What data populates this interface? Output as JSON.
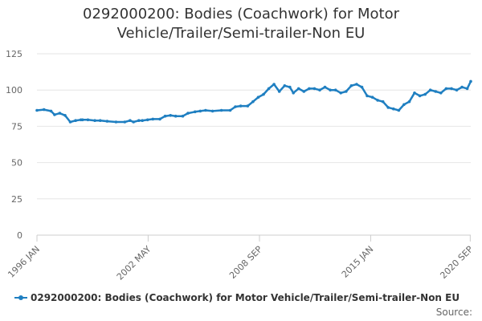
{
  "title_lines": [
    "0292000200: Bodies (Coachwork) for Motor",
    "Vehicle/Trailer/Semi-trailer-Non EU"
  ],
  "source_label": "Source:",
  "colors": {
    "series": "#1f7fc1",
    "grid": "#e6e6e6",
    "axis_text": "#666666"
  },
  "chart_data": {
    "type": "line",
    "title": "0292000200: Bodies (Coachwork) for Motor Vehicle/Trailer/Semi-trailer-Non EU",
    "xlabel": "",
    "ylabel": "",
    "ylim": [
      0,
      125
    ],
    "yticks": [
      0,
      25,
      50,
      75,
      100,
      125
    ],
    "xlim": [
      1996.0,
      2020.7
    ],
    "xticks": [
      {
        "x": 1996.0,
        "label": "1996 JAN"
      },
      {
        "x": 2002.33,
        "label": "2002 MAY"
      },
      {
        "x": 2008.67,
        "label": "2008 SEP"
      },
      {
        "x": 2015.0,
        "label": "2015 JAN"
      },
      {
        "x": 2020.67,
        "label": "2020 SEP"
      }
    ],
    "legend_position": "bottom-left",
    "series": [
      {
        "name": "0292000200: Bodies (Coachwork) for Motor Vehicle/Trailer/Semi-trailer-Non EU",
        "x": [
          1996.0,
          1996.4,
          1996.8,
          1997.0,
          1997.3,
          1997.6,
          1997.9,
          1998.2,
          1998.5,
          1998.6,
          1998.9,
          1999.3,
          1999.6,
          2000.0,
          2000.5,
          2001.0,
          2001.3,
          2001.5,
          2001.8,
          2002.0,
          2002.3,
          2002.6,
          2003.0,
          2003.3,
          2003.6,
          2003.9,
          2004.3,
          2004.6,
          2005.0,
          2005.3,
          2005.6,
          2006.0,
          2006.5,
          2007.0,
          2007.3,
          2007.6,
          2008.0,
          2008.3,
          2008.6,
          2008.9,
          2009.2,
          2009.5,
          2009.8,
          2010.1,
          2010.4,
          2010.6,
          2010.9,
          2011.2,
          2011.5,
          2011.8,
          2012.1,
          2012.4,
          2012.7,
          2013.0,
          2013.3,
          2013.6,
          2013.9,
          2014.2,
          2014.5,
          2014.8,
          2015.1,
          2015.4,
          2015.7,
          2016.0,
          2016.3,
          2016.6,
          2016.9,
          2017.2,
          2017.5,
          2017.8,
          2018.1,
          2018.4,
          2018.7,
          2019.0,
          2019.3,
          2019.6,
          2019.9,
          2020.2,
          2020.5,
          2020.7
        ],
        "values": [
          86,
          86.5,
          85.5,
          83,
          84,
          82.5,
          78,
          79,
          79.5,
          79.5,
          79.5,
          79,
          79,
          78.5,
          78,
          78,
          79,
          78,
          79,
          79,
          79.5,
          80,
          80,
          82,
          82.5,
          82,
          82,
          84,
          85,
          85.5,
          86,
          85.5,
          86,
          86,
          88.5,
          89,
          89,
          92,
          95,
          97,
          101,
          104,
          99,
          103,
          102,
          98,
          101,
          99,
          101,
          101,
          100,
          102,
          100,
          100,
          98,
          99,
          103,
          104,
          102,
          96,
          95,
          93,
          92,
          88,
          87,
          86,
          90,
          92,
          98,
          96,
          97,
          100,
          99,
          98,
          101,
          101,
          100,
          102,
          101,
          106
        ]
      }
    ]
  }
}
